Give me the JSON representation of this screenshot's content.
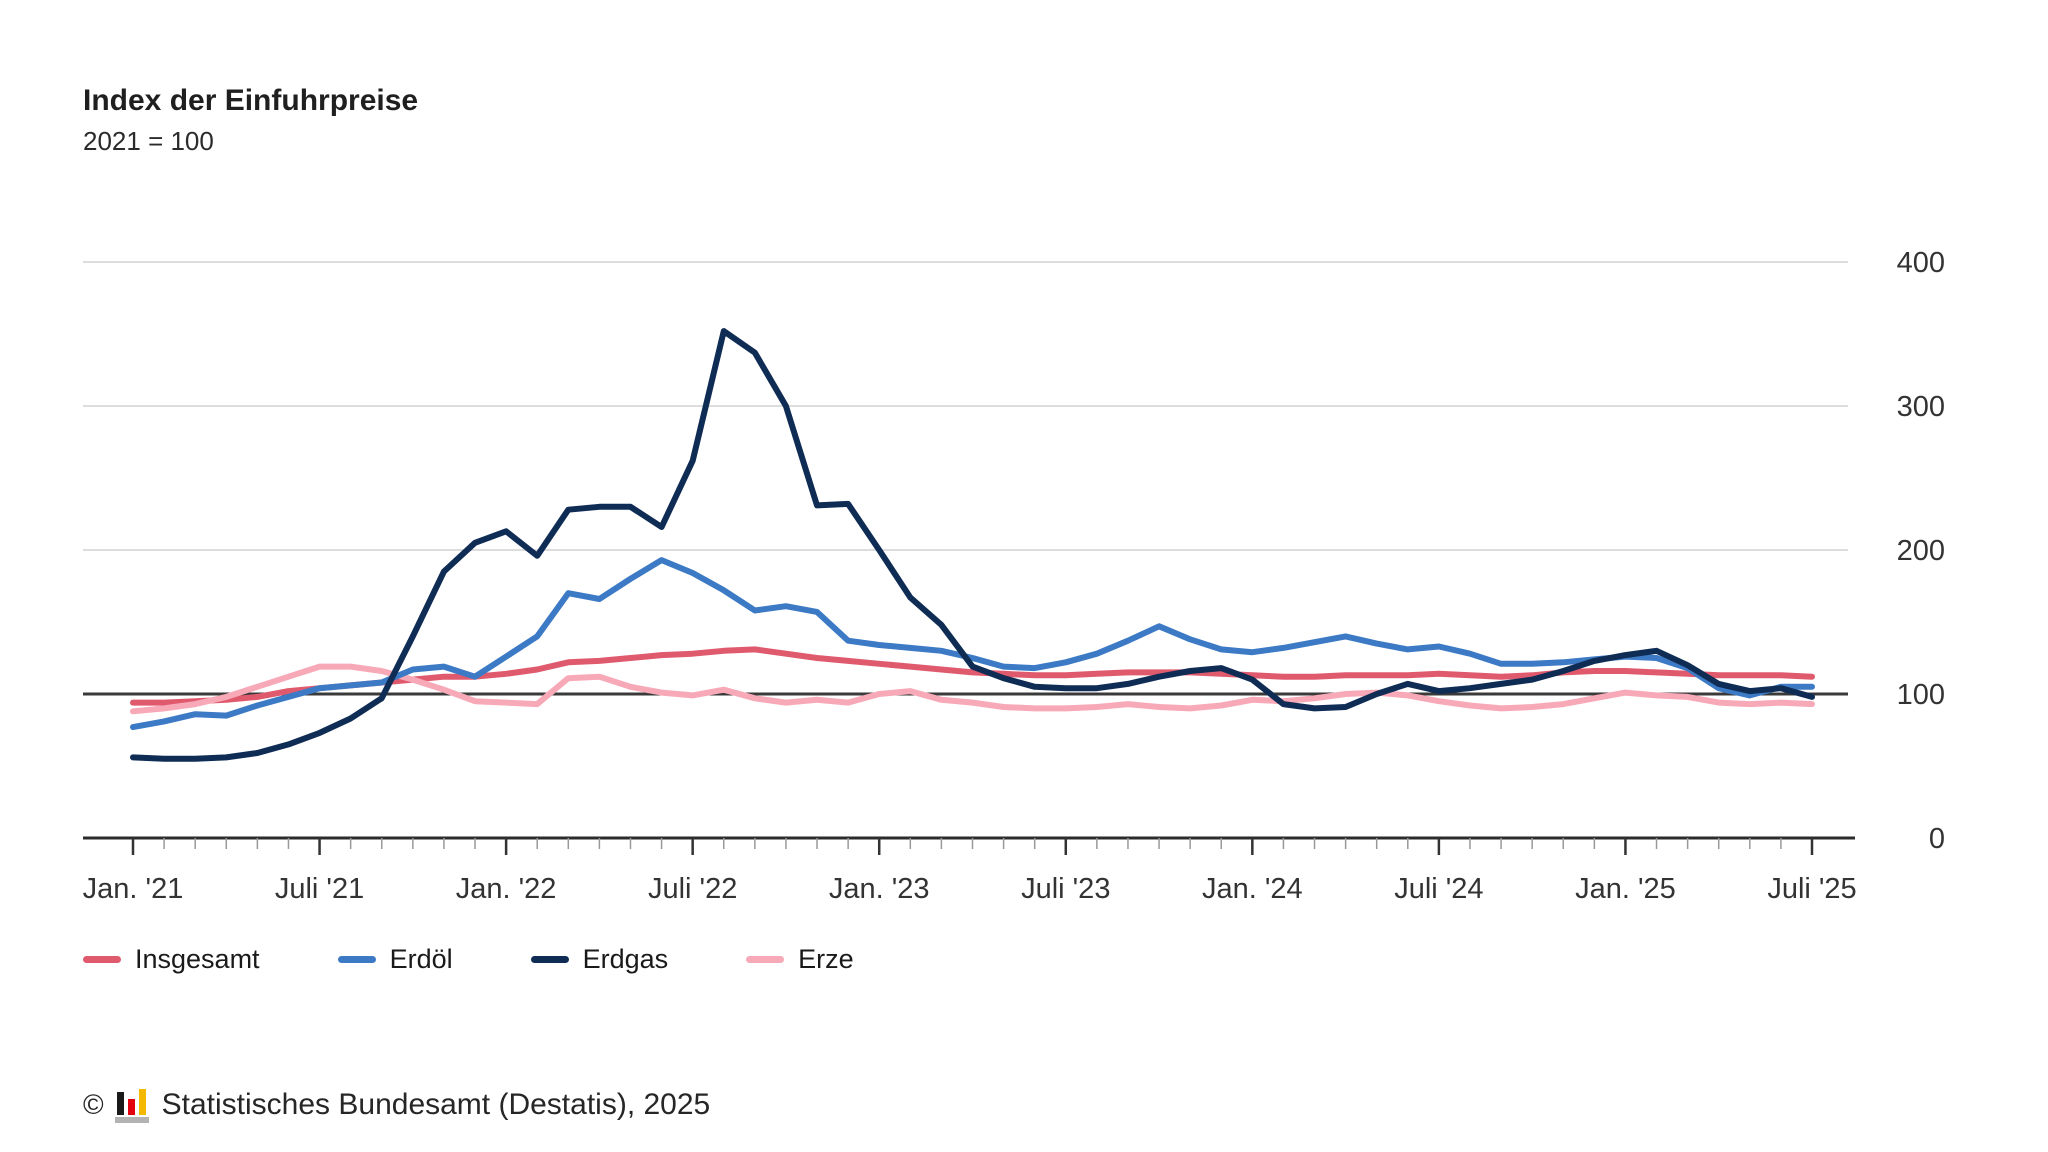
{
  "title": "Index der Einfuhrpreise",
  "subtitle": "2021 = 100",
  "footer": {
    "copyright": "©",
    "source": "Statistisches Bundesamt (Destatis), 2025",
    "logo_colors": {
      "bar1": "#1a1a1a",
      "bar2": "#e3000f",
      "bar3": "#f5b800",
      "base": "#b3b3b3"
    }
  },
  "chart_data": {
    "type": "line",
    "title": "Index der Einfuhrpreise",
    "subtitle": "2021 = 100",
    "x_start_month": "Jan. 2021",
    "x_end_month": "Juli 2025",
    "x_tick_labels": [
      "Jan. '21",
      "Juli '21",
      "Jan. '22",
      "Juli '22",
      "Jan. '23",
      "Juli '23",
      "Jan. '24",
      "Juli '24",
      "Jan. '25",
      "Juli '25"
    ],
    "x_tick_month_indices": [
      0,
      6,
      12,
      18,
      24,
      30,
      36,
      42,
      48,
      54
    ],
    "ylim": [
      0,
      400
    ],
    "y_ticks": [
      0,
      100,
      200,
      300,
      400
    ],
    "baseline_value": 100,
    "grid": "horizontal",
    "legend_position": "bottom",
    "axis_color": "#2b2b2b",
    "grid_color": "#d2d2d2",
    "baseline_color": "#3a3a3a",
    "label_color": "#333333",
    "series": [
      {
        "name": "Insgesamt",
        "color": "#e05a6e",
        "values": [
          94,
          94,
          95,
          96,
          98,
          102,
          104,
          106,
          108,
          110,
          112,
          112,
          114,
          117,
          122,
          123,
          125,
          127,
          128,
          130,
          131,
          128,
          125,
          123,
          121,
          119,
          117,
          115,
          114,
          113,
          113,
          114,
          115,
          115,
          115,
          114,
          113,
          112,
          112,
          113,
          113,
          113,
          114,
          113,
          112,
          113,
          115,
          116,
          116,
          115,
          114,
          113,
          113,
          113,
          112
        ]
      },
      {
        "name": "Erdöl",
        "color": "#3c7ac5",
        "values": [
          77,
          81,
          86,
          85,
          92,
          98,
          104,
          106,
          108,
          117,
          119,
          112,
          126,
          140,
          170,
          166,
          180,
          193,
          184,
          172,
          158,
          161,
          157,
          137,
          134,
          132,
          130,
          125,
          119,
          118,
          122,
          128,
          137,
          147,
          138,
          131,
          129,
          132,
          136,
          140,
          135,
          131,
          133,
          128,
          121,
          121,
          122,
          124,
          126,
          125,
          118,
          104,
          99,
          105,
          105
        ]
      },
      {
        "name": "Erdgas",
        "color": "#0f2c55",
        "values": [
          56,
          55,
          55,
          56,
          59,
          65,
          73,
          83,
          97,
          140,
          185,
          205,
          213,
          196,
          228,
          230,
          230,
          216,
          262,
          352,
          337,
          300,
          231,
          232,
          200,
          167,
          148,
          119,
          111,
          105,
          104,
          104,
          107,
          112,
          116,
          118,
          110,
          93,
          90,
          91,
          100,
          107,
          102,
          104,
          107,
          110,
          116,
          123,
          127,
          130,
          120,
          107,
          102,
          104,
          98
        ]
      },
      {
        "name": "Erze",
        "color": "#f8a9b8",
        "values": [
          88,
          90,
          93,
          98,
          105,
          112,
          119,
          119,
          116,
          110,
          103,
          95,
          94,
          93,
          111,
          112,
          105,
          101,
          99,
          103,
          97,
          94,
          96,
          94,
          100,
          102,
          96,
          94,
          91,
          90,
          90,
          91,
          93,
          91,
          90,
          92,
          96,
          95,
          97,
          100,
          101,
          99,
          95,
          92,
          90,
          91,
          93,
          97,
          101,
          99,
          98,
          94,
          93,
          94,
          93
        ]
      }
    ]
  }
}
